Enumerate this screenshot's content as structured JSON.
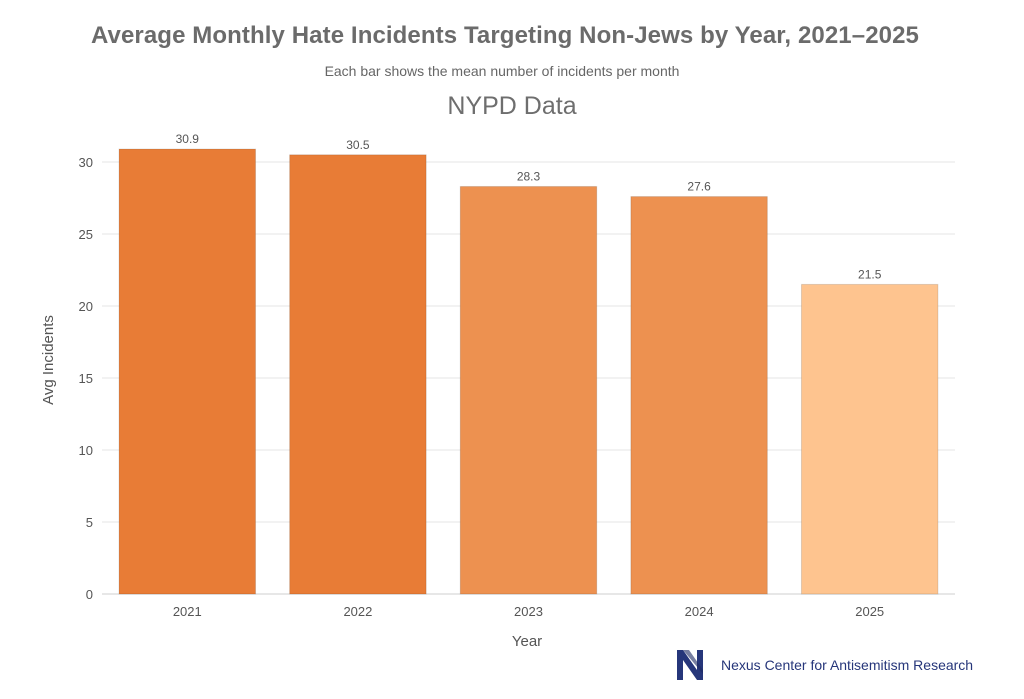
{
  "chart_data": {
    "type": "bar",
    "title": "Average Monthly Hate Incidents Targeting Non-Jews by Year, 2021–2025",
    "subtitle": "Each bar shows the mean number of incidents per month",
    "heading": "NYPD Data",
    "xlabel": "Year",
    "ylabel": "Avg Incidents",
    "categories": [
      "2021",
      "2022",
      "2023",
      "2024",
      "2025"
    ],
    "values": [
      30.9,
      30.5,
      28.3,
      27.6,
      21.5
    ],
    "data_labels": [
      "30.9",
      "30.5",
      "28.3",
      "27.6",
      "21.5"
    ],
    "ylim": [
      0,
      32.5
    ],
    "yticks": [
      0,
      5,
      10,
      15,
      20,
      25,
      30
    ],
    "grid": true,
    "legend": "none",
    "colors": [
      "#e87c36",
      "#e87c36",
      "#ed9150",
      "#ed9150",
      "#fec48f"
    ],
    "axis_text_color": "#555555",
    "grid_color": "#e6e6e6"
  },
  "footer": {
    "org_name": "Nexus Center for Antisemitism Research",
    "logo_icon": "nexus-n-logo-icon",
    "logo_color": "#26367a"
  }
}
